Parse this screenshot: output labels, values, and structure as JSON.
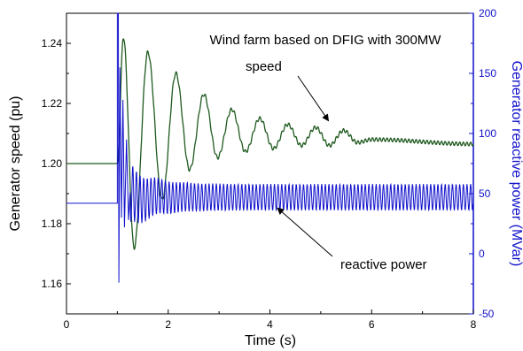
{
  "chart_data": {
    "type": "line",
    "title": "Wind farm based on DFIG with 300MW",
    "xlabel": "Time (s)",
    "ylabel_left": "Generator speed (pu)",
    "ylabel_right": "Generator reactive power (MVar)",
    "xlim": [
      0,
      8
    ],
    "ylim_left": [
      1.15,
      1.25
    ],
    "ylim_right": [
      -50,
      200
    ],
    "x_ticks": [
      "0",
      "2",
      "4",
      "6",
      "8"
    ],
    "y_left_ticks": [
      "1.16",
      "1.18",
      "1.20",
      "1.22",
      "1.24"
    ],
    "y_right_ticks": [
      "-50",
      "0",
      "50",
      "100",
      "150",
      "200"
    ],
    "grid": false,
    "annotations": [
      {
        "text": "speed",
        "target_series": "speed"
      },
      {
        "text": "reactive power",
        "target_series": "reactive_power"
      }
    ],
    "series": [
      {
        "id": "speed",
        "axis": "left",
        "color": "#1f5a1f",
        "description": "damped oscillation after fault at t=1.0 s",
        "pre_fault_value": 1.2,
        "fault_time": 1.0,
        "x": [
          0,
          1.0,
          1.12,
          1.33,
          1.6,
          1.88,
          2.15,
          2.42,
          2.7,
          2.97,
          3.25,
          3.52,
          3.8,
          4.07,
          4.35,
          4.62,
          4.9,
          5.17,
          5.45,
          5.72,
          6.0,
          8.0
        ],
        "y": [
          1.2,
          1.2,
          1.242,
          1.172,
          1.237,
          1.188,
          1.23,
          1.198,
          1.223,
          1.202,
          1.218,
          1.204,
          1.215,
          1.205,
          1.213,
          1.206,
          1.212,
          1.206,
          1.211,
          1.207,
          1.208,
          1.2065
        ]
      },
      {
        "id": "reactive_power",
        "axis": "right",
        "color": "#1010cc",
        "description": "reactive power with fast oscillation after fault at t=1.0 s",
        "pre_fault_value": 42,
        "fault_time": 1.0,
        "peak_value": 200,
        "min_value": -24,
        "steady_mean": 47,
        "steady_amplitude": 11
      }
    ]
  }
}
